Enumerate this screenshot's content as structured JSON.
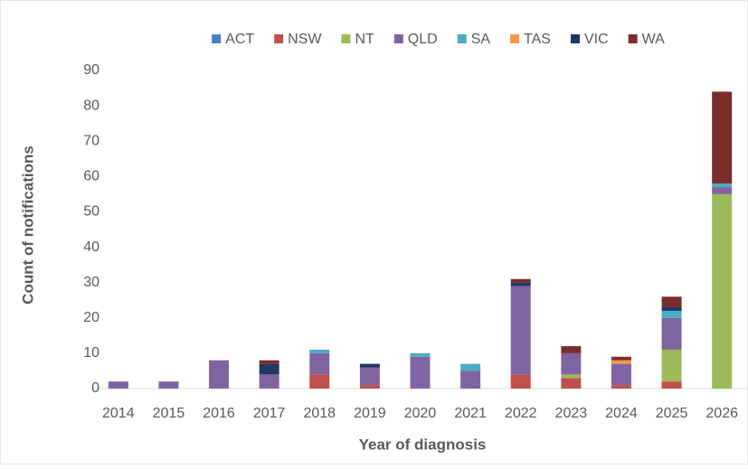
{
  "chart_data": {
    "type": "bar",
    "stacked": true,
    "x_label": "Year of diagnosis",
    "y_label": "Count of notifications",
    "categories": [
      "2014",
      "2015",
      "2016",
      "2017",
      "2018",
      "2019",
      "2020",
      "2021",
      "2022",
      "2023",
      "2024",
      "2025",
      "2026"
    ],
    "series": [
      {
        "name": "ACT",
        "color": "#4a7fc1",
        "values": [
          0,
          0,
          0,
          0,
          0,
          0,
          0,
          0,
          0,
          0,
          0,
          0,
          0
        ]
      },
      {
        "name": "NSW",
        "color": "#c0504d",
        "values": [
          0,
          0,
          0,
          0,
          4,
          1,
          0,
          0,
          4,
          3,
          1,
          2,
          0
        ]
      },
      {
        "name": "NT",
        "color": "#9bbb59",
        "values": [
          0,
          0,
          0,
          0,
          0,
          0,
          0,
          0,
          0,
          1,
          0,
          9,
          55
        ]
      },
      {
        "name": "QLD",
        "color": "#8064a2",
        "values": [
          2,
          2,
          8,
          4,
          6,
          5,
          9,
          5,
          25,
          6,
          6,
          9,
          2
        ]
      },
      {
        "name": "SA",
        "color": "#4bacc6",
        "values": [
          0,
          0,
          0,
          0,
          1,
          0,
          1,
          2,
          0,
          0,
          0,
          2,
          1
        ]
      },
      {
        "name": "TAS",
        "color": "#f79646",
        "values": [
          0,
          0,
          0,
          0,
          0,
          0,
          0,
          0,
          0,
          0,
          1,
          0,
          0
        ]
      },
      {
        "name": "VIC",
        "color": "#1f3864",
        "values": [
          0,
          0,
          0,
          3,
          0,
          1,
          0,
          0,
          1,
          0,
          0,
          1,
          0
        ]
      },
      {
        "name": "WA",
        "color": "#7b2c2c",
        "values": [
          0,
          0,
          0,
          1,
          0,
          0,
          0,
          0,
          1,
          2,
          1,
          3,
          26
        ]
      }
    ],
    "ylim": [
      0,
      90
    ],
    "yticks": [
      0,
      10,
      20,
      30,
      40,
      50,
      60,
      70,
      80,
      90
    ],
    "grid": false,
    "legend": "top"
  }
}
